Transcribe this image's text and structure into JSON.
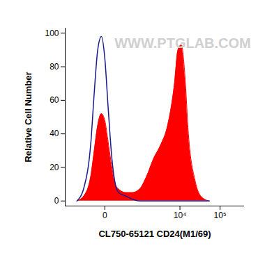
{
  "chart_data": {
    "type": "histogram",
    "xlabel": "CL750-65121 CD24(M1/69)",
    "ylabel": "Relative Cell Number",
    "annotations": [
      "WWW.PTGLAB.COM"
    ],
    "log": "x",
    "x": [
      -550,
      -320,
      -170,
      -115,
      -70,
      -30,
      0,
      30,
      70,
      115,
      170,
      320,
      550,
      880,
      1400,
      2100,
      3200,
      4900,
      7300,
      8900,
      10900,
      13300,
      16300,
      24000,
      36000,
      54000
    ],
    "series": [
      {
        "type": "area",
        "color": "#ff0000",
        "values": [
          0,
          3,
          15,
          30,
          45,
          52,
          48,
          35,
          20,
          10,
          7,
          5,
          5,
          7,
          15,
          25,
          33,
          45,
          70,
          90,
          93,
          75,
          40,
          12,
          2,
          0
        ]
      },
      {
        "type": "line",
        "color": "#1a1a8c",
        "values": [
          0,
          8,
          35,
          65,
          90,
          98,
          85,
          55,
          25,
          10,
          5,
          3,
          1,
          0,
          0,
          0,
          0,
          0,
          0,
          0,
          0,
          0,
          0,
          0,
          0,
          0
        ]
      }
    ],
    "xlim": [
      -1200,
      400000
    ],
    "xticks": [
      0,
      {
        "value": 10000,
        "label": "10⁴"
      },
      {
        "value": 100000,
        "label": "10⁵"
      }
    ],
    "ylim": [
      -3,
      103
    ],
    "yticks": [
      0,
      20,
      40,
      60,
      80,
      100
    ],
    "grid": false
  }
}
